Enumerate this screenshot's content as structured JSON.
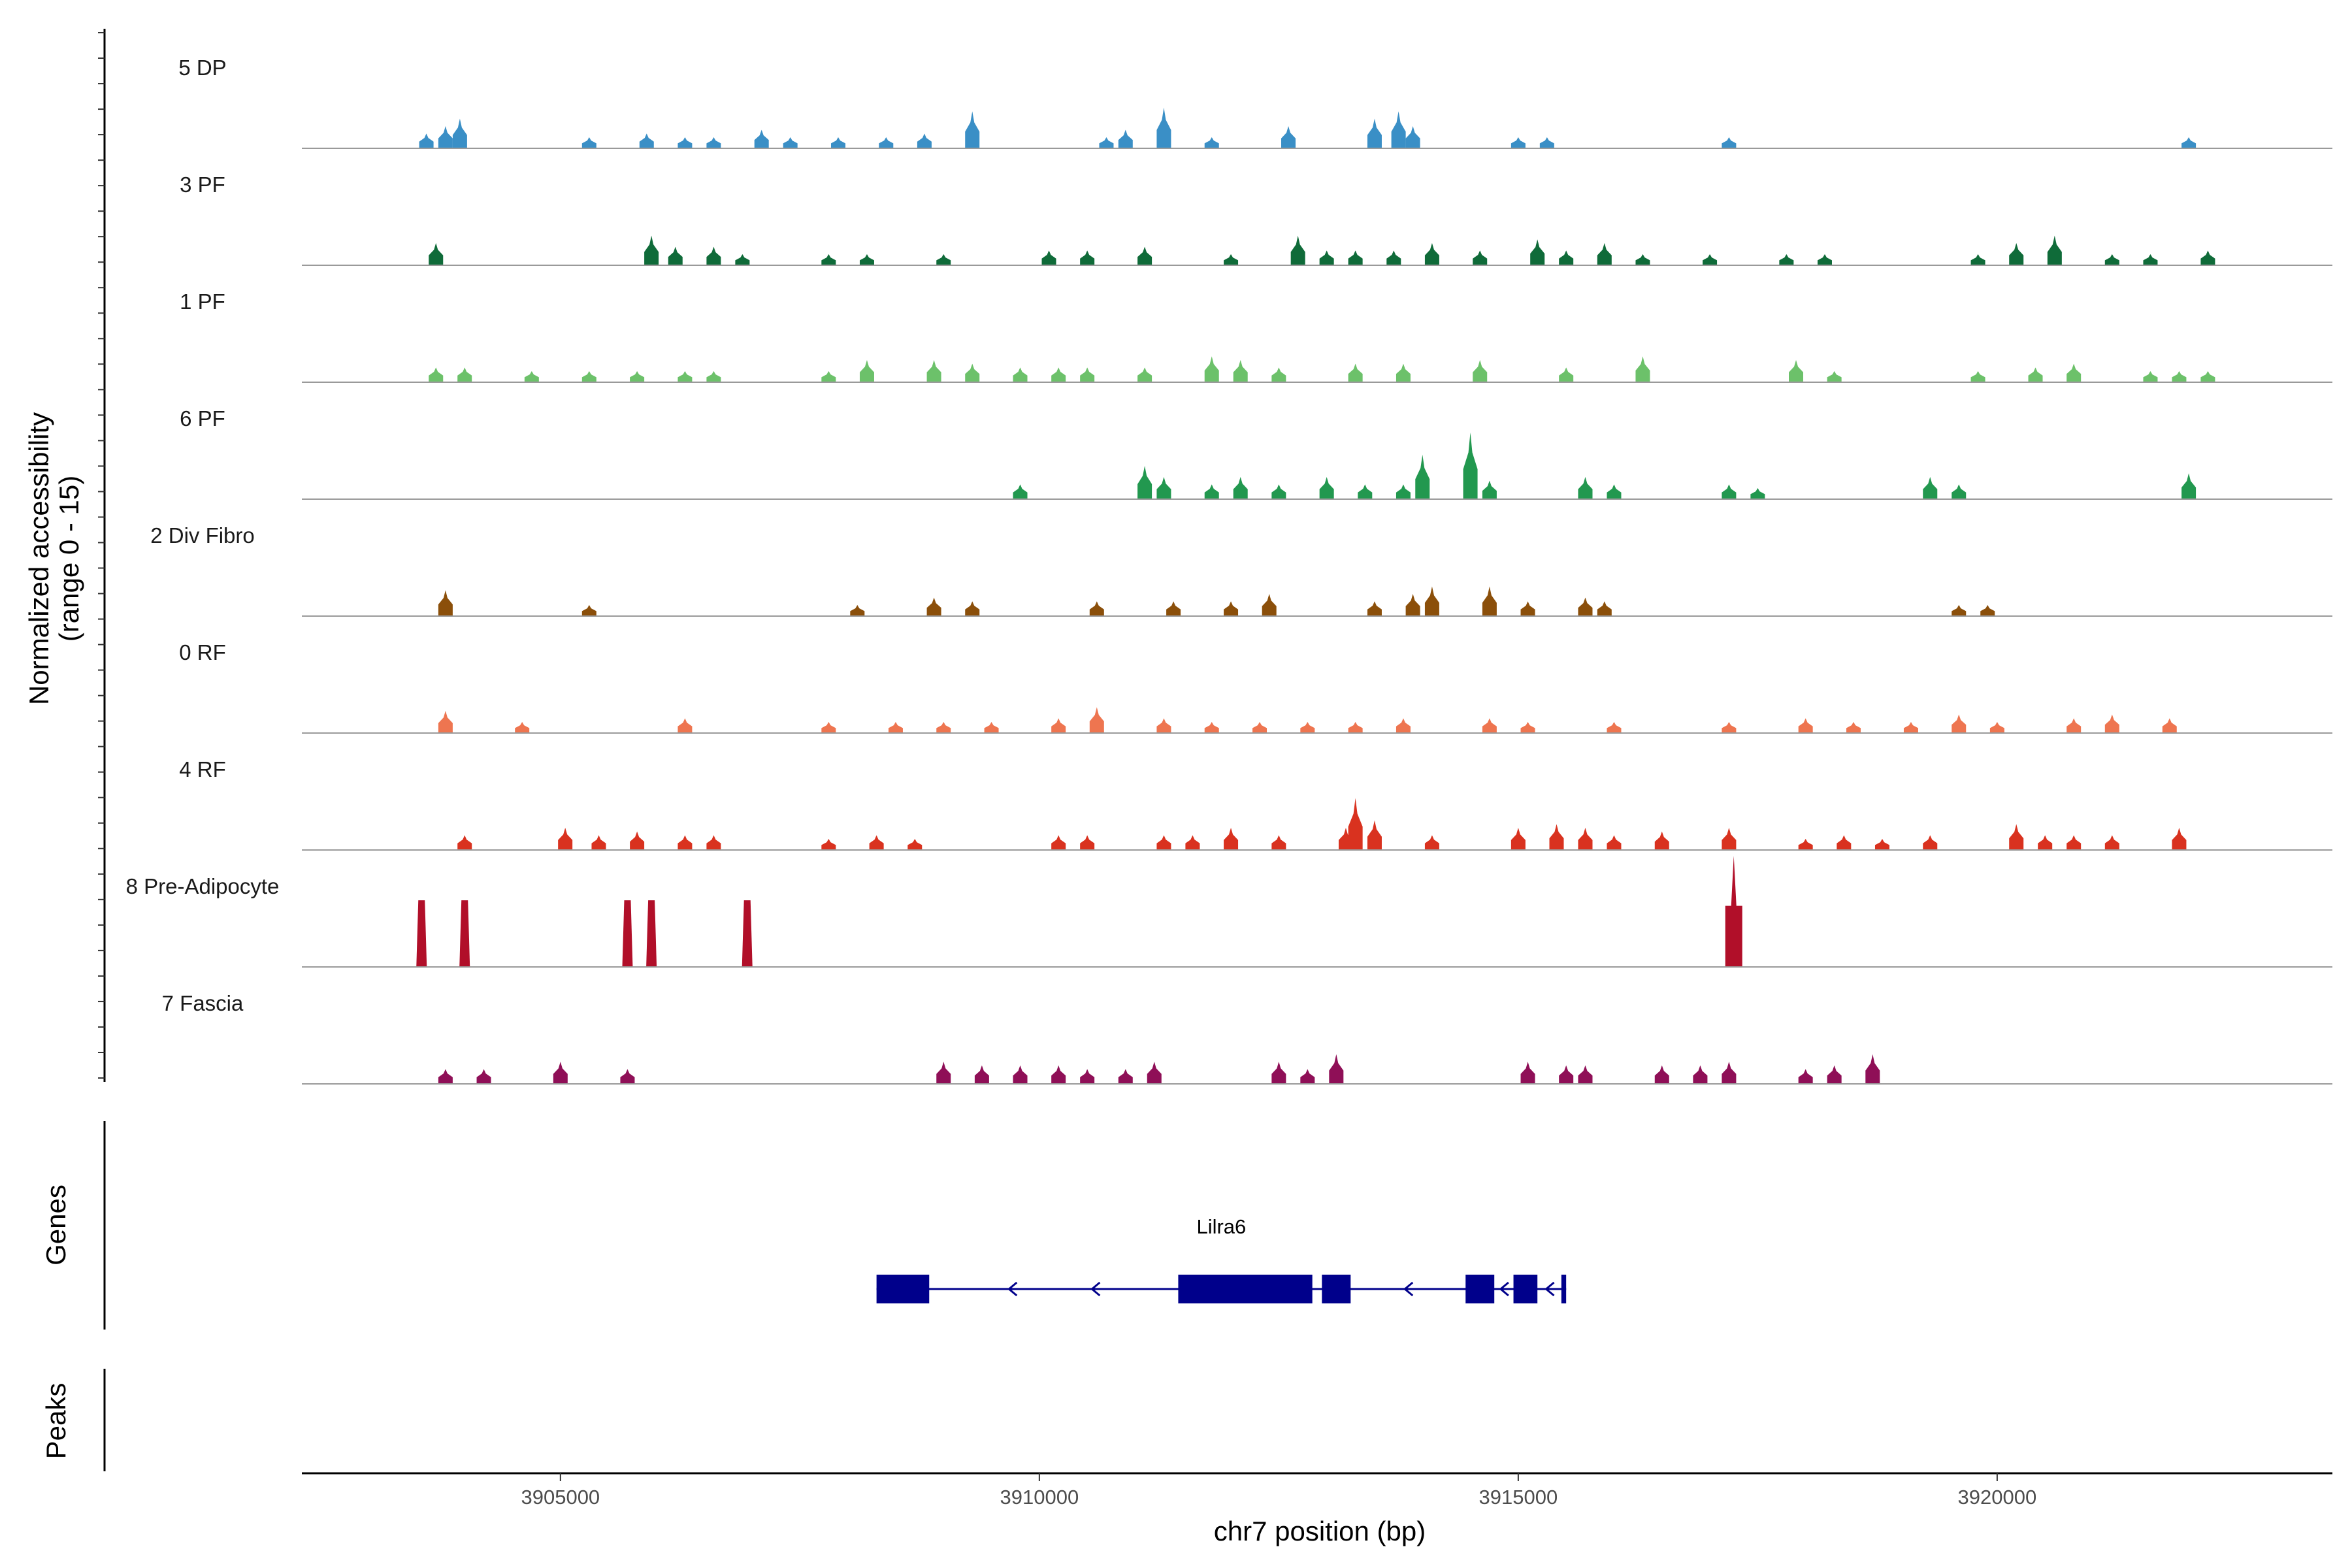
{
  "chart_data": {
    "type": "area",
    "title": "",
    "ylabel_line1": "Normalized accessibility",
    "ylabel_line2": "(range 0 - 15)",
    "xlabel": "chr7 position (bp)",
    "xlim": [
      3902300,
      3923500
    ],
    "ylim": [
      0,
      15
    ],
    "x_ticks": [
      3905000,
      3910000,
      3915000,
      3920000
    ],
    "x_tick_labels": [
      "3905000",
      "3910000",
      "3915000",
      "3920000"
    ],
    "gene_track_label": "Genes",
    "peak_track_label": "Peaks",
    "tracks": [
      {
        "name": "5 DP",
        "color": "#3a8fc6",
        "peaks": [
          [
            3903600,
            2
          ],
          [
            3903800,
            3
          ],
          [
            3903950,
            4
          ],
          [
            3905300,
            1.5
          ],
          [
            3905900,
            2
          ],
          [
            3906300,
            1.5
          ],
          [
            3906600,
            1.5
          ],
          [
            3907100,
            2.5
          ],
          [
            3907400,
            1.5
          ],
          [
            3907900,
            1.5
          ],
          [
            3908400,
            1.5
          ],
          [
            3908800,
            2
          ],
          [
            3909300,
            5
          ],
          [
            3910700,
            1.5
          ],
          [
            3910900,
            2.5
          ],
          [
            3911300,
            5.5
          ],
          [
            3911800,
            1.5
          ],
          [
            3912600,
            3
          ],
          [
            3913500,
            4
          ],
          [
            3913750,
            5
          ],
          [
            3913900,
            3
          ],
          [
            3915000,
            1.5
          ],
          [
            3915300,
            1.5
          ],
          [
            3917200,
            1.5
          ],
          [
            3922000,
            1.5
          ]
        ]
      },
      {
        "name": "3 PF",
        "color": "#0f6b39",
        "peaks": [
          [
            3903700,
            3
          ],
          [
            3905950,
            4
          ],
          [
            3906200,
            2.5
          ],
          [
            3906600,
            2.5
          ],
          [
            3906900,
            1.5
          ],
          [
            3907800,
            1.5
          ],
          [
            3908200,
            1.5
          ],
          [
            3909000,
            1.5
          ],
          [
            3910100,
            2
          ],
          [
            3910500,
            2
          ],
          [
            3911100,
            2.5
          ],
          [
            3912000,
            1.5
          ],
          [
            3912700,
            4
          ],
          [
            3913000,
            2
          ],
          [
            3913300,
            2
          ],
          [
            3913700,
            2
          ],
          [
            3914100,
            3
          ],
          [
            3914600,
            2
          ],
          [
            3915200,
            3.5
          ],
          [
            3915500,
            2
          ],
          [
            3915900,
            3
          ],
          [
            3916300,
            1.5
          ],
          [
            3917000,
            1.5
          ],
          [
            3917800,
            1.5
          ],
          [
            3918200,
            1.5
          ],
          [
            3919800,
            1.5
          ],
          [
            3920200,
            3
          ],
          [
            3920600,
            4
          ],
          [
            3921200,
            1.5
          ],
          [
            3921600,
            1.5
          ],
          [
            3922200,
            2
          ]
        ]
      },
      {
        "name": "1 PF",
        "color": "#6cc16a",
        "peaks": [
          [
            3903700,
            2
          ],
          [
            3904000,
            2
          ],
          [
            3904700,
            1.5
          ],
          [
            3905300,
            1.5
          ],
          [
            3905800,
            1.5
          ],
          [
            3906300,
            1.5
          ],
          [
            3906600,
            1.5
          ],
          [
            3907800,
            1.5
          ],
          [
            3908200,
            3
          ],
          [
            3908900,
            3
          ],
          [
            3909300,
            2.5
          ],
          [
            3909800,
            2
          ],
          [
            3910200,
            2
          ],
          [
            3910500,
            2
          ],
          [
            3911100,
            2
          ],
          [
            3911800,
            3.5
          ],
          [
            3912100,
            3
          ],
          [
            3912500,
            2
          ],
          [
            3913300,
            2.5
          ],
          [
            3913800,
            2.5
          ],
          [
            3914600,
            3
          ],
          [
            3915500,
            2
          ],
          [
            3916300,
            3.5
          ],
          [
            3917900,
            3
          ],
          [
            3918300,
            1.5
          ],
          [
            3919800,
            1.5
          ],
          [
            3920400,
            2
          ],
          [
            3920800,
            2.5
          ],
          [
            3921600,
            1.5
          ],
          [
            3921900,
            1.5
          ],
          [
            3922200,
            1.5
          ]
        ]
      },
      {
        "name": "6 PF",
        "color": "#22984f",
        "peaks": [
          [
            3909800,
            2
          ],
          [
            3911100,
            4.5
          ],
          [
            3911300,
            3
          ],
          [
            3911800,
            2
          ],
          [
            3912100,
            3
          ],
          [
            3912500,
            2
          ],
          [
            3913000,
            3
          ],
          [
            3913400,
            2
          ],
          [
            3913800,
            2
          ],
          [
            3914000,
            6
          ],
          [
            3914500,
            9
          ],
          [
            3914700,
            2.5
          ],
          [
            3915700,
            3
          ],
          [
            3916000,
            2
          ],
          [
            3917200,
            2
          ],
          [
            3917500,
            1.5
          ],
          [
            3919300,
            3
          ],
          [
            3919600,
            2
          ],
          [
            3922000,
            3.5
          ]
        ]
      },
      {
        "name": "2 Div Fibro",
        "color": "#8b4f0a",
        "peaks": [
          [
            3903800,
            3.5
          ],
          [
            3905300,
            1.5
          ],
          [
            3908100,
            1.5
          ],
          [
            3908900,
            2.5
          ],
          [
            3909300,
            2
          ],
          [
            3910600,
            2
          ],
          [
            3911400,
            2
          ],
          [
            3912000,
            2
          ],
          [
            3912400,
            3
          ],
          [
            3913500,
            2
          ],
          [
            3913900,
            3
          ],
          [
            3914100,
            4
          ],
          [
            3914700,
            4
          ],
          [
            3915100,
            2
          ],
          [
            3915700,
            2.5
          ],
          [
            3915900,
            2
          ],
          [
            3919600,
            1.5
          ],
          [
            3919900,
            1.5
          ]
        ]
      },
      {
        "name": "0 RF",
        "color": "#ee7550",
        "peaks": [
          [
            3903800,
            3
          ],
          [
            3904600,
            1.5
          ],
          [
            3906300,
            2
          ],
          [
            3907800,
            1.5
          ],
          [
            3908500,
            1.5
          ],
          [
            3909000,
            1.5
          ],
          [
            3909500,
            1.5
          ],
          [
            3910200,
            2
          ],
          [
            3910600,
            3.5
          ],
          [
            3911300,
            2
          ],
          [
            3911800,
            1.5
          ],
          [
            3912300,
            1.5
          ],
          [
            3912800,
            1.5
          ],
          [
            3913300,
            1.5
          ],
          [
            3913800,
            2
          ],
          [
            3914700,
            2
          ],
          [
            3915100,
            1.5
          ],
          [
            3916000,
            1.5
          ],
          [
            3917200,
            1.5
          ],
          [
            3918000,
            2
          ],
          [
            3918500,
            1.5
          ],
          [
            3919100,
            1.5
          ],
          [
            3919600,
            2.5
          ],
          [
            3920000,
            1.5
          ],
          [
            3920800,
            2
          ],
          [
            3921200,
            2.5
          ],
          [
            3921800,
            2
          ]
        ]
      },
      {
        "name": "4 RF",
        "color": "#d9321f",
        "peaks": [
          [
            3904000,
            2
          ],
          [
            3905050,
            3
          ],
          [
            3905400,
            2
          ],
          [
            3905800,
            2.5
          ],
          [
            3906300,
            2
          ],
          [
            3906600,
            2
          ],
          [
            3907800,
            1.5
          ],
          [
            3908300,
            2
          ],
          [
            3908700,
            1.5
          ],
          [
            3910200,
            2
          ],
          [
            3910500,
            2
          ],
          [
            3911300,
            2
          ],
          [
            3911600,
            2
          ],
          [
            3912000,
            3
          ],
          [
            3912500,
            2
          ],
          [
            3913200,
            3
          ],
          [
            3913300,
            7
          ],
          [
            3913500,
            4
          ],
          [
            3914100,
            2
          ],
          [
            3915000,
            3
          ],
          [
            3915400,
            3.5
          ],
          [
            3915700,
            3
          ],
          [
            3916000,
            2
          ],
          [
            3916500,
            2.5
          ],
          [
            3917200,
            3
          ],
          [
            3918000,
            1.5
          ],
          [
            3918400,
            2
          ],
          [
            3918800,
            1.5
          ],
          [
            3919300,
            2
          ],
          [
            3920200,
            3.5
          ],
          [
            3920500,
            2
          ],
          [
            3920800,
            2
          ],
          [
            3921200,
            2
          ],
          [
            3921900,
            3
          ]
        ]
      },
      {
        "name": "8 Pre-Adipocyte",
        "color": "#b10f29",
        "peaks": [
          [
            3903550,
            9
          ],
          [
            3904000,
            9
          ],
          [
            3905700,
            9
          ],
          [
            3905950,
            9
          ],
          [
            3906950,
            9
          ],
          [
            3917250,
            15
          ]
        ]
      },
      {
        "name": "7 Fascia",
        "color": "#8f0f57",
        "peaks": [
          [
            3903800,
            2
          ],
          [
            3904200,
            2
          ],
          [
            3905000,
            3
          ],
          [
            3905700,
            2
          ],
          [
            3909000,
            3
          ],
          [
            3909400,
            2.5
          ],
          [
            3909800,
            2.5
          ],
          [
            3910200,
            2.5
          ],
          [
            3910500,
            2
          ],
          [
            3910900,
            2
          ],
          [
            3911200,
            3
          ],
          [
            3912500,
            3
          ],
          [
            3912800,
            2
          ],
          [
            3913100,
            4
          ],
          [
            3915100,
            3
          ],
          [
            3915500,
            2.5
          ],
          [
            3915700,
            2.5
          ],
          [
            3916500,
            2.5
          ],
          [
            3916900,
            2.5
          ],
          [
            3917200,
            3
          ],
          [
            3918000,
            2
          ],
          [
            3918300,
            2.5
          ],
          [
            3918700,
            4
          ]
        ]
      }
    ],
    "gene": {
      "name": "Lilra6",
      "strand": "-",
      "start": 3908300,
      "end": 3915500,
      "exons": [
        [
          3908300,
          3908850
        ],
        [
          3911450,
          3912850
        ],
        [
          3912950,
          3913250
        ],
        [
          3914450,
          3914750
        ],
        [
          3914950,
          3915200
        ],
        [
          3915450,
          3915500
        ]
      ],
      "color": "#00008b"
    }
  }
}
